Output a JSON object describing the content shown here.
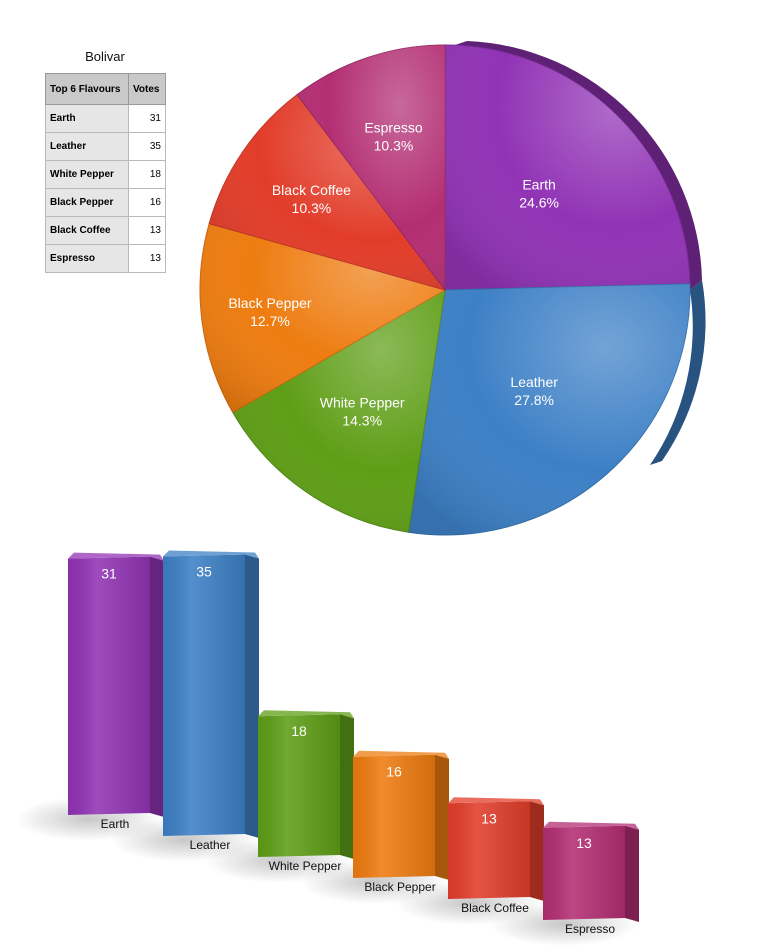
{
  "colors": {
    "Earth": "#9133b5",
    "Leather": "#3d80c6",
    "White Pepper": "#5e9e16",
    "Black Pepper": "#ee7c10",
    "Black Coffee": "#e23d2a",
    "Espresso": "#b32e73"
  },
  "table": {
    "title": "Bolivar",
    "header": [
      "Top 6 Flavours",
      "Votes"
    ],
    "rows": [
      {
        "name": "Earth",
        "votes": "31"
      },
      {
        "name": "Leather",
        "votes": "35"
      },
      {
        "name": "White Pepper",
        "votes": "18"
      },
      {
        "name": "Black Pepper",
        "votes": "16"
      },
      {
        "name": "Black Coffee",
        "votes": "13"
      },
      {
        "name": "Espresso",
        "votes": "13"
      }
    ]
  },
  "chart_data": [
    {
      "type": "pie",
      "title": "",
      "categories": [
        "Earth",
        "Leather",
        "White Pepper",
        "Black Pepper",
        "Black Coffee",
        "Espresso"
      ],
      "values": [
        31,
        35,
        18,
        16,
        13,
        13
      ],
      "percent_labels": [
        "24.6%",
        "27.8%",
        "14.3%",
        "12.7%",
        "10.3%",
        "10.3%"
      ],
      "style": "3d",
      "legend": "none"
    },
    {
      "type": "bar",
      "title": "",
      "categories": [
        "Earth",
        "Leather",
        "White Pepper",
        "Black Pepper",
        "Black Coffee",
        "Espresso"
      ],
      "values": [
        31,
        35,
        18,
        16,
        13,
        13
      ],
      "data_labels": [
        "31",
        "35",
        "18",
        "16",
        "13",
        "13"
      ],
      "xlabel": "",
      "ylabel": "",
      "grid": false,
      "style": "3d perspective",
      "legend": "none"
    }
  ]
}
